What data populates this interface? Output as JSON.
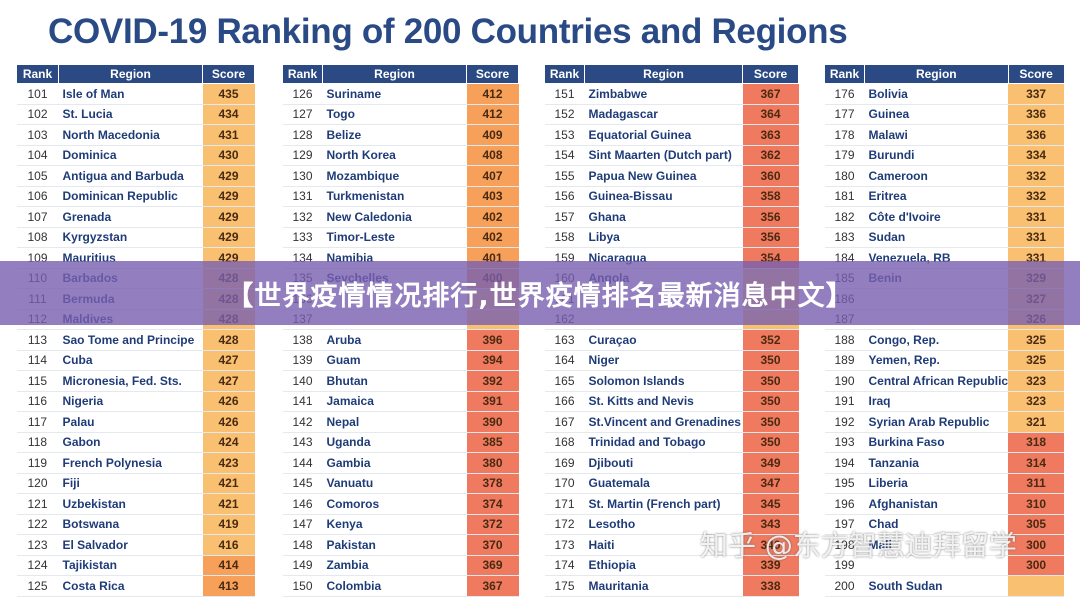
{
  "title": "COVID-19 Ranking of 200 Countries and Regions",
  "headers": {
    "rank": "Rank",
    "region": "Region",
    "score": "Score"
  },
  "colors": {
    "header_bg": "#2b4a84",
    "score_high": "#ef7a60",
    "score_mid": "#f6a05a",
    "score_low": "#f8c070"
  },
  "banner_text": "【世界疫情情况排行,世界疫情排名最新消息中文】",
  "watermark_text": "知乎 @东方智慧迪拜留学",
  "tables": [
    {
      "rows": [
        {
          "rank": "101",
          "region": "Isle of Man",
          "score": "435"
        },
        {
          "rank": "102",
          "region": "St. Lucia",
          "score": "434"
        },
        {
          "rank": "103",
          "region": "North Macedonia",
          "score": "431"
        },
        {
          "rank": "104",
          "region": "Dominica",
          "score": "430"
        },
        {
          "rank": "105",
          "region": "Antigua and Barbuda",
          "score": "429"
        },
        {
          "rank": "106",
          "region": "Dominican Republic",
          "score": "429"
        },
        {
          "rank": "107",
          "region": "Grenada",
          "score": "429"
        },
        {
          "rank": "108",
          "region": "Kyrgyzstan",
          "score": "429"
        },
        {
          "rank": "109",
          "region": "Mauritius",
          "score": "429"
        },
        {
          "rank": "110",
          "region": "Barbados",
          "score": "428"
        },
        {
          "rank": "111",
          "region": "Bermuda",
          "score": "428"
        },
        {
          "rank": "112",
          "region": "Maldives",
          "score": "428"
        },
        {
          "rank": "113",
          "region": "Sao Tome and Principe",
          "score": "428"
        },
        {
          "rank": "114",
          "region": "Cuba",
          "score": "427"
        },
        {
          "rank": "115",
          "region": "Micronesia, Fed. Sts.",
          "score": "427"
        },
        {
          "rank": "116",
          "region": "Nigeria",
          "score": "426"
        },
        {
          "rank": "117",
          "region": "Palau",
          "score": "426"
        },
        {
          "rank": "118",
          "region": "Gabon",
          "score": "424"
        },
        {
          "rank": "119",
          "region": "French Polynesia",
          "score": "423"
        },
        {
          "rank": "120",
          "region": "Fiji",
          "score": "421"
        },
        {
          "rank": "121",
          "region": "Uzbekistan",
          "score": "421"
        },
        {
          "rank": "122",
          "region": "Botswana",
          "score": "419"
        },
        {
          "rank": "123",
          "region": "El Salvador",
          "score": "416"
        },
        {
          "rank": "124",
          "region": "Tajikistan",
          "score": "414"
        },
        {
          "rank": "125",
          "region": "Costa Rica",
          "score": "413"
        }
      ]
    },
    {
      "rows": [
        {
          "rank": "126",
          "region": "Suriname",
          "score": "412"
        },
        {
          "rank": "127",
          "region": "Togo",
          "score": "412"
        },
        {
          "rank": "128",
          "region": "Belize",
          "score": "409"
        },
        {
          "rank": "129",
          "region": "North Korea",
          "score": "408"
        },
        {
          "rank": "130",
          "region": "Mozambique",
          "score": "407"
        },
        {
          "rank": "131",
          "region": "Turkmenistan",
          "score": "403"
        },
        {
          "rank": "132",
          "region": "New Caledonia",
          "score": "402"
        },
        {
          "rank": "133",
          "region": "Timor-Leste",
          "score": "402"
        },
        {
          "rank": "134",
          "region": "Namibia",
          "score": "401"
        },
        {
          "rank": "135",
          "region": "Seychelles",
          "score": "400"
        },
        {
          "rank": "136",
          "region": "",
          "score": ""
        },
        {
          "rank": "137",
          "region": "",
          "score": ""
        },
        {
          "rank": "138",
          "region": "Aruba",
          "score": "396"
        },
        {
          "rank": "139",
          "region": "Guam",
          "score": "394"
        },
        {
          "rank": "140",
          "region": "Bhutan",
          "score": "392"
        },
        {
          "rank": "141",
          "region": "Jamaica",
          "score": "391"
        },
        {
          "rank": "142",
          "region": "Nepal",
          "score": "390"
        },
        {
          "rank": "143",
          "region": "Uganda",
          "score": "385"
        },
        {
          "rank": "144",
          "region": "Gambia",
          "score": "380"
        },
        {
          "rank": "145",
          "region": "Vanuatu",
          "score": "378"
        },
        {
          "rank": "146",
          "region": "Comoros",
          "score": "374"
        },
        {
          "rank": "147",
          "region": "Kenya",
          "score": "372"
        },
        {
          "rank": "148",
          "region": "Pakistan",
          "score": "370"
        },
        {
          "rank": "149",
          "region": "Zambia",
          "score": "369"
        },
        {
          "rank": "150",
          "region": "Colombia",
          "score": "367"
        }
      ]
    },
    {
      "rows": [
        {
          "rank": "151",
          "region": "Zimbabwe",
          "score": "367"
        },
        {
          "rank": "152",
          "region": "Madagascar",
          "score": "364"
        },
        {
          "rank": "153",
          "region": "Equatorial Guinea",
          "score": "363"
        },
        {
          "rank": "154",
          "region": "Sint Maarten (Dutch part)",
          "score": "362"
        },
        {
          "rank": "155",
          "region": "Papua New Guinea",
          "score": "360"
        },
        {
          "rank": "156",
          "region": "Guinea-Bissau",
          "score": "358"
        },
        {
          "rank": "157",
          "region": "Ghana",
          "score": "356"
        },
        {
          "rank": "158",
          "region": "Libya",
          "score": "356"
        },
        {
          "rank": "159",
          "region": "Nicaragua",
          "score": "354"
        },
        {
          "rank": "160",
          "region": "Angola",
          "score": ""
        },
        {
          "rank": "161",
          "region": "",
          "score": ""
        },
        {
          "rank": "162",
          "region": "",
          "score": ""
        },
        {
          "rank": "163",
          "region": "Curaçao",
          "score": "352"
        },
        {
          "rank": "164",
          "region": "Niger",
          "score": "350"
        },
        {
          "rank": "165",
          "region": "Solomon Islands",
          "score": "350"
        },
        {
          "rank": "166",
          "region": "St. Kitts and Nevis",
          "score": "350"
        },
        {
          "rank": "167",
          "region": "St.Vincent and Grenadines",
          "score": "350"
        },
        {
          "rank": "168",
          "region": "Trinidad and Tobago",
          "score": "350"
        },
        {
          "rank": "169",
          "region": "Djibouti",
          "score": "349"
        },
        {
          "rank": "170",
          "region": "Guatemala",
          "score": "347"
        },
        {
          "rank": "171",
          "region": "St. Martin (French part)",
          "score": "345"
        },
        {
          "rank": "172",
          "region": "Lesotho",
          "score": "343"
        },
        {
          "rank": "173",
          "region": "Haiti",
          "score": "340"
        },
        {
          "rank": "174",
          "region": "Ethiopia",
          "score": "339"
        },
        {
          "rank": "175",
          "region": "Mauritania",
          "score": "338"
        }
      ]
    },
    {
      "rows": [
        {
          "rank": "176",
          "region": "Bolivia",
          "score": "337"
        },
        {
          "rank": "177",
          "region": "Guinea",
          "score": "336"
        },
        {
          "rank": "178",
          "region": "Malawi",
          "score": "336"
        },
        {
          "rank": "179",
          "region": "Burundi",
          "score": "334"
        },
        {
          "rank": "180",
          "region": "Cameroon",
          "score": "332"
        },
        {
          "rank": "181",
          "region": "Eritrea",
          "score": "332"
        },
        {
          "rank": "182",
          "region": "Côte d'Ivoire",
          "score": "331"
        },
        {
          "rank": "183",
          "region": "Sudan",
          "score": "331"
        },
        {
          "rank": "184",
          "region": "Venezuela, RB",
          "score": "331"
        },
        {
          "rank": "185",
          "region": "Benin",
          "score": "329"
        },
        {
          "rank": "186",
          "region": "",
          "score": "327"
        },
        {
          "rank": "187",
          "region": "",
          "score": "326"
        },
        {
          "rank": "188",
          "region": "Congo, Rep.",
          "score": "325"
        },
        {
          "rank": "189",
          "region": "Yemen, Rep.",
          "score": "325"
        },
        {
          "rank": "190",
          "region": "Central African Republic",
          "score": "323"
        },
        {
          "rank": "191",
          "region": "Iraq",
          "score": "323"
        },
        {
          "rank": "192",
          "region": "Syrian Arab Republic",
          "score": "321"
        },
        {
          "rank": "193",
          "region": "Burkina Faso",
          "score": "318"
        },
        {
          "rank": "194",
          "region": "Tanzania",
          "score": "314"
        },
        {
          "rank": "195",
          "region": "Liberia",
          "score": "311"
        },
        {
          "rank": "196",
          "region": "Afghanistan",
          "score": "310"
        },
        {
          "rank": "197",
          "region": "Chad",
          "score": "305"
        },
        {
          "rank": "198",
          "region": "Mali",
          "score": "300"
        },
        {
          "rank": "199",
          "region": "",
          "score": "300"
        },
        {
          "rank": "200",
          "region": "South Sudan",
          "score": ""
        }
      ]
    }
  ]
}
